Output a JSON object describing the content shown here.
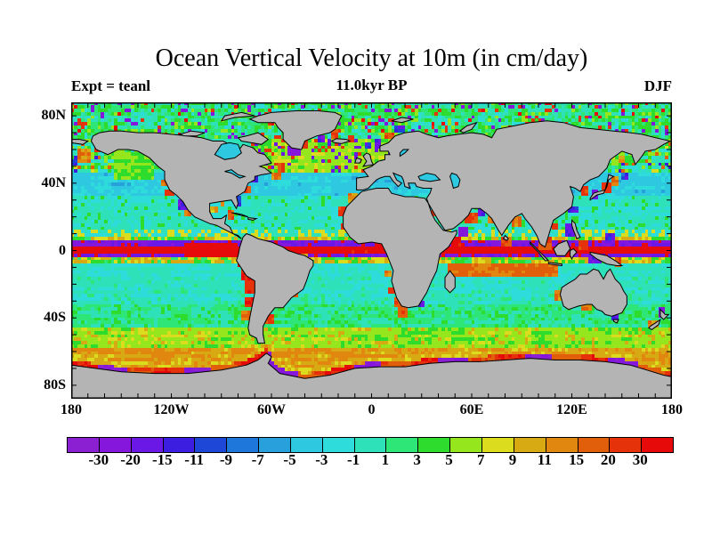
{
  "title": "Ocean Vertical Velocity at 10m (in cm/day)",
  "annotations": {
    "subtitle": "11.0kyr BP",
    "experiment": "Expt = teanl",
    "season": "DJF"
  },
  "map": {
    "background": "#ffffff",
    "land_color": "#b4b4b4",
    "coast_color": "#000000",
    "frame_color": "#000000",
    "lake_color": "#2ec8e1",
    "lat_labels": [
      {
        "label": "80N",
        "lat": 80
      },
      {
        "label": "40N",
        "lat": 40
      },
      {
        "label": "0",
        "lat": 0
      },
      {
        "label": "40S",
        "lat": -40
      },
      {
        "label": "80S",
        "lat": -80
      }
    ],
    "lon_labels": [
      {
        "label": "180",
        "lon": -180
      },
      {
        "label": "120W",
        "lon": -120
      },
      {
        "label": "60W",
        "lon": -60
      },
      {
        "label": "0",
        "lon": 0
      },
      {
        "label": "60E",
        "lon": 60
      },
      {
        "label": "120E",
        "lon": 120
      },
      {
        "label": "180",
        "lon": 180
      }
    ]
  },
  "colorbar": {
    "labels": [
      "-30",
      "-20",
      "-15",
      "-11",
      "-9",
      "-7",
      "-5",
      "-3",
      "-1",
      "1",
      "3",
      "5",
      "7",
      "9",
      "11",
      "15",
      "20",
      "30"
    ],
    "colors": [
      "#8b1fd2",
      "#8517dc",
      "#6b17e6",
      "#3c1ee0",
      "#1e46d7",
      "#1e78dc",
      "#28a0dc",
      "#2ec8e1",
      "#2edcdc",
      "#2ee1b9",
      "#2ee678",
      "#2edc2e",
      "#96e61e",
      "#dcdc1e",
      "#d7aa14",
      "#e1870f",
      "#e15f0a",
      "#e6320a",
      "#e60a0a"
    ]
  },
  "chart_data": {
    "type": "heatmap",
    "title": "Ocean Vertical Velocity at 10m (in cm/day)",
    "subtitle": "11.0kyr BP",
    "experiment": "teanl",
    "season": "DJF",
    "variable": "ocean vertical velocity at 10 m depth",
    "units": "cm/day",
    "projection": "equirectangular world map",
    "x_range": [
      -180,
      180
    ],
    "y_range": [
      -88,
      88
    ],
    "x_tick_labels": [
      "180",
      "120W",
      "60W",
      "0",
      "60E",
      "120E",
      "180"
    ],
    "y_tick_labels": [
      "80N",
      "40N",
      "0",
      "40S",
      "80S"
    ],
    "legend_position": "bottom horizontal colorbar",
    "colorbar_levels": [
      -30,
      -20,
      -15,
      -11,
      -9,
      -7,
      -5,
      -3,
      -1,
      1,
      3,
      5,
      7,
      9,
      11,
      15,
      20,
      30
    ],
    "colorbar_colors": [
      "#8b1fd2",
      "#8517dc",
      "#6b17e6",
      "#3c1ee0",
      "#1e46d7",
      "#1e78dc",
      "#28a0dc",
      "#2ec8e1",
      "#2edcdc",
      "#2ee1b9",
      "#2ee678",
      "#2edc2e",
      "#96e61e",
      "#dcdc1e",
      "#d7aa14",
      "#e1870f",
      "#e15f0a",
      "#e6320a",
      "#e60a0a"
    ],
    "features": [
      "strong upwelling band (red, >30 cm/day) along the equator in all basins, widest in the eastern Pacific and eastern Atlantic",
      "strong downwelling bands (purple/violet, -30 to -15) flanking the equator near 2-5 N and 2-5 S",
      "yellow-green upwelling streaks near 5-9 N/S",
      "broad cyan/teal weak-vertical-velocity subtropical gyres (-5 to 1 cm/day)",
      "orange band (~9-15) in the southern tropical Indian Ocean near 8-16 S",
      "green upwelling band (3-9) across the Southern Ocean 45-60 S",
      "alternating orange/red and purple strip hugging the Antarctic coastline",
      "mottled green with intense red and purple convection spots in the North Atlantic, around Greenland and the Nordic Seas",
      "green patch in the Gulf of Alaska; energetic red/purple mix in the Kuroshio region off Japan",
      "coastal upwelling streaks (red/orange/yellow) along Peru-Chile, California, NW Africa, Namibia, Somalia/Arabia and Australia",
      "continents gray with black coastlines; Antarctica gray across the bottom"
    ]
  }
}
